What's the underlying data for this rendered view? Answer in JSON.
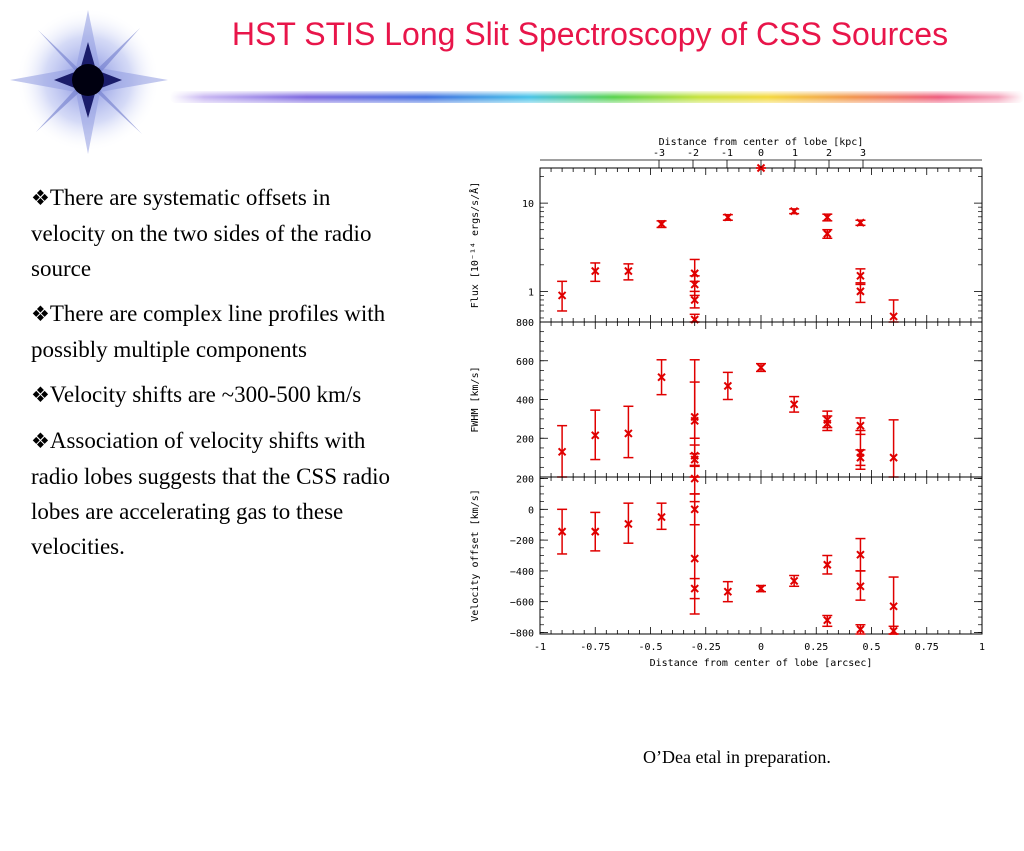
{
  "slide": {
    "title": "HST STIS Long Slit Spectroscopy of CSS Sources",
    "bullet_symbol": "❖",
    "bullets": [
      "There are systematic offsets in velocity on the two sides of the radio source",
      "There are complex line profiles with possibly multiple components",
      "Velocity shifts are ~300-500 km/s",
      "Association of velocity shifts with radio lobes suggests that the CSS radio lobes are accelerating gas to these velocities."
    ],
    "credit": "O’Dea etal in preparation.",
    "colors": {
      "title": "#e8154a",
      "data": "#e00000"
    },
    "logo_icon": "starburst-icon",
    "divider_icon": "rainbow-divider"
  },
  "chart_data": {
    "type": "scatter",
    "xlabel": "Distance from center of lobe [arcsec]",
    "xlim": [
      -1,
      1
    ],
    "x_ticks": [
      "-1",
      "-0.75",
      "-0.5",
      "-0.25",
      "0",
      "0.25",
      "0.5",
      "0.75",
      "1"
    ],
    "top_axis": {
      "label": "Distance from center of lobe [kpc]",
      "ticks": [
        "-3",
        "-2",
        "-1",
        "0",
        "1",
        "2",
        "3"
      ],
      "tick_values": [
        -3,
        -2,
        -1,
        0,
        1,
        2,
        3
      ],
      "kpc_per_arcsec": 6.5
    },
    "panels": [
      {
        "name": "flux",
        "ylabel": "Flux [10⁻¹⁴ ergs/s/Å]",
        "yscale": "log",
        "ylim": [
          0.45,
          25
        ],
        "y_ticks": [
          "1",
          "10"
        ],
        "y_tick_values": [
          1,
          10
        ],
        "points": [
          {
            "x": -0.9,
            "y": 0.9,
            "lo": 0.6,
            "hi": 1.3
          },
          {
            "x": -0.75,
            "y": 1.7,
            "lo": 1.3,
            "hi": 2.1
          },
          {
            "x": -0.6,
            "y": 1.7,
            "lo": 1.35,
            "hi": 2.05
          },
          {
            "x": -0.45,
            "y": 5.8,
            "lo": 5.3,
            "hi": 6.3
          },
          {
            "x": -0.3,
            "y": 1.6,
            "lo": 1.3,
            "hi": 2.3
          },
          {
            "x": -0.3,
            "y": 1.2,
            "lo": 0.9,
            "hi": 1.5
          },
          {
            "x": -0.3,
            "y": 0.8,
            "lo": 0.65,
            "hi": 1.0
          },
          {
            "x": -0.3,
            "y": 0.48,
            "lo": 0.45,
            "hi": 0.55
          },
          {
            "x": -0.15,
            "y": 6.9,
            "lo": 6.4,
            "hi": 7.4
          },
          {
            "x": 0.0,
            "y": 27,
            "lo": 26,
            "hi": 28
          },
          {
            "x": 0.15,
            "y": 8.1,
            "lo": 7.6,
            "hi": 8.6
          },
          {
            "x": 0.3,
            "y": 6.9,
            "lo": 6.3,
            "hi": 7.5
          },
          {
            "x": 0.3,
            "y": 4.5,
            "lo": 4.0,
            "hi": 5.0
          },
          {
            "x": 0.45,
            "y": 6.0,
            "lo": 5.6,
            "hi": 6.4
          },
          {
            "x": 0.45,
            "y": 1.5,
            "lo": 1.2,
            "hi": 1.8
          },
          {
            "x": 0.45,
            "y": 1.0,
            "lo": 0.75,
            "hi": 1.25
          },
          {
            "x": 0.6,
            "y": 0.52,
            "lo": 0.45,
            "hi": 0.8
          }
        ]
      },
      {
        "name": "fwhm",
        "ylabel": "FWHM [km/s]",
        "yscale": "linear",
        "ylim": [
          0,
          800
        ],
        "y_ticks": [
          "200",
          "400",
          "600",
          "800"
        ],
        "y_tick_values": [
          200,
          400,
          600,
          800
        ],
        "points": [
          {
            "x": -0.9,
            "y": 130,
            "lo": 0,
            "hi": 265
          },
          {
            "x": -0.75,
            "y": 215,
            "lo": 90,
            "hi": 345
          },
          {
            "x": -0.6,
            "y": 225,
            "lo": 100,
            "hi": 365
          },
          {
            "x": -0.45,
            "y": 515,
            "lo": 425,
            "hi": 605
          },
          {
            "x": -0.3,
            "y": 310,
            "lo": 200,
            "hi": 490
          },
          {
            "x": -0.3,
            "y": 290,
            "lo": 0,
            "hi": 605
          },
          {
            "x": -0.3,
            "y": 110,
            "lo": 55,
            "hi": 165
          },
          {
            "x": -0.3,
            "y": 90,
            "lo": 60,
            "hi": 120
          },
          {
            "x": -0.15,
            "y": 470,
            "lo": 400,
            "hi": 540
          },
          {
            "x": 0.0,
            "y": 565,
            "lo": 545,
            "hi": 585
          },
          {
            "x": 0.15,
            "y": 375,
            "lo": 335,
            "hi": 415
          },
          {
            "x": 0.3,
            "y": 295,
            "lo": 255,
            "hi": 340
          },
          {
            "x": 0.3,
            "y": 275,
            "lo": 240,
            "hi": 315
          },
          {
            "x": 0.45,
            "y": 265,
            "lo": 220,
            "hi": 305
          },
          {
            "x": 0.45,
            "y": 125,
            "lo": 40,
            "hi": 240
          },
          {
            "x": 0.45,
            "y": 100,
            "lo": 60,
            "hi": 140
          },
          {
            "x": 0.6,
            "y": 100,
            "lo": 0,
            "hi": 295
          }
        ]
      },
      {
        "name": "velocity",
        "ylabel": "Velocity offset [km/s]",
        "yscale": "linear",
        "ylim": [
          -810,
          210
        ],
        "y_ticks": [
          "−800",
          "−600",
          "−400",
          "−200",
          "0",
          "200"
        ],
        "y_tick_values": [
          -800,
          -600,
          -400,
          -200,
          0,
          200
        ],
        "points": [
          {
            "x": -0.9,
            "y": -145,
            "lo": -290,
            "hi": 0
          },
          {
            "x": -0.75,
            "y": -145,
            "lo": -270,
            "hi": -20
          },
          {
            "x": -0.6,
            "y": -95,
            "lo": -220,
            "hi": 40
          },
          {
            "x": -0.45,
            "y": -50,
            "lo": -130,
            "hi": 40
          },
          {
            "x": -0.3,
            "y": 200,
            "lo": 100,
            "hi": 210
          },
          {
            "x": -0.3,
            "y": 0,
            "lo": -100,
            "hi": 100
          },
          {
            "x": -0.3,
            "y": -320,
            "lo": -680,
            "hi": 50
          },
          {
            "x": -0.3,
            "y": -515,
            "lo": -580,
            "hi": -450
          },
          {
            "x": -0.15,
            "y": -535,
            "lo": -600,
            "hi": -470
          },
          {
            "x": 0.0,
            "y": -515,
            "lo": -535,
            "hi": -495
          },
          {
            "x": 0.15,
            "y": -465,
            "lo": -500,
            "hi": -430
          },
          {
            "x": 0.3,
            "y": -360,
            "lo": -420,
            "hi": -300
          },
          {
            "x": 0.3,
            "y": -720,
            "lo": -760,
            "hi": -690
          },
          {
            "x": 0.45,
            "y": -295,
            "lo": -400,
            "hi": -190
          },
          {
            "x": 0.45,
            "y": -500,
            "lo": -590,
            "hi": -400
          },
          {
            "x": 0.45,
            "y": -780,
            "lo": -810,
            "hi": -750
          },
          {
            "x": 0.6,
            "y": -630,
            "lo": -810,
            "hi": -440
          },
          {
            "x": 0.6,
            "y": -790,
            "lo": -810,
            "hi": -760
          }
        ]
      }
    ]
  }
}
